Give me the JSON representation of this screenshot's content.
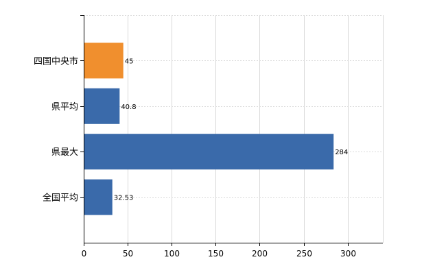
{
  "chart_data": {
    "type": "bar",
    "orientation": "horizontal",
    "categories": [
      "四国中央市",
      "県平均",
      "県最大",
      "全国平均"
    ],
    "values": [
      45,
      40.8,
      284,
      32.53
    ],
    "value_labels": [
      "45",
      "40.8",
      "284",
      "32.53"
    ],
    "bar_colors": [
      "#f08f2e",
      "#3a6aaa",
      "#3a6aaa",
      "#3a6aaa"
    ],
    "xlim": [
      0,
      340
    ],
    "xticks": [
      0,
      50,
      100,
      150,
      200,
      250,
      300
    ],
    "xtick_labels": [
      "0",
      "50",
      "100",
      "150",
      "200",
      "250",
      "300"
    ],
    "grid": true,
    "title": "",
    "xlabel": "",
    "ylabel": ""
  }
}
